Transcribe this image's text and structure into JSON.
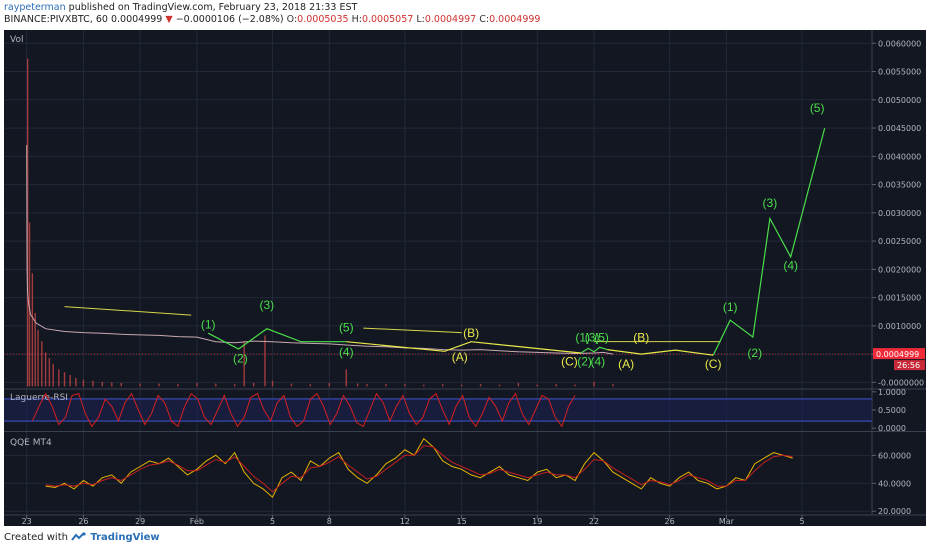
{
  "header": {
    "author": "raypeterman",
    "published": "published on TradingView.com, February 23, 2018 21:33 EST",
    "symbol": "BINANCE:PIVXBTC, 60",
    "last": "0.0004999",
    "arrow": "▼",
    "change": "−0.0000106 (−2.08%)",
    "o_label": "O:",
    "o_value": "0.0005035",
    "h_label": "H:",
    "h_value": "0.0005057",
    "l_label": "L:",
    "l_value": "0.0004997",
    "c_label": "C:",
    "c_value": "0.0004999"
  },
  "footer": {
    "created_with": "Created with",
    "brand": "TradingView"
  },
  "colors": {
    "bg": "#131722",
    "grid": "#22293a",
    "axis_text": "#b2b5be",
    "price": "#c9a9b0",
    "wave_green": "#4ade4a",
    "wave_yellow": "#e9e94a",
    "trend_yellow": "#d7d74a",
    "rsi": "#d62020",
    "qqe_fast": "#e5b400",
    "qqe_slow": "#c42020",
    "volume": "#b44040",
    "price_tag": "#ef2b3a",
    "timer_tag": "#c92a3a",
    "rsi_band": "#3d52c4"
  },
  "chart_data": [
    {
      "type": "line",
      "panel": "price",
      "title": "",
      "indicator_label": "Vol",
      "y_ticks": [
        "0.0060000",
        "0.0055000",
        "0.0050000",
        "0.0045000",
        "0.0040000",
        "0.0035000",
        "0.0030000",
        "0.0025000",
        "0.0020000",
        "0.0015000",
        "0.0010000",
        "0.0005000",
        "-0.0000000"
      ],
      "ylim": [
        -0.0001,
        0.0062
      ],
      "x_ticks": [
        "23",
        "26",
        "29",
        "Feb",
        "5",
        "8",
        "12",
        "15",
        "19",
        "22",
        "26",
        "Mar",
        "5"
      ],
      "x_tick_days": [
        0,
        3,
        6,
        9,
        13,
        16,
        20,
        23,
        27,
        30,
        34,
        37,
        41
      ],
      "current_price": "0.0004999",
      "countdown": "26:56",
      "series": [
        {
          "role": "price",
          "x": [
            0,
            0.02,
            0.05,
            0.1,
            0.2,
            0.5,
            1,
            2,
            3,
            4,
            5,
            6,
            7,
            8,
            9,
            10,
            11,
            12,
            13,
            14,
            15,
            16,
            17,
            18,
            19,
            20,
            21,
            22,
            23,
            24,
            25,
            26,
            27,
            28,
            29,
            30,
            30.5,
            31
          ],
          "y": [
            0.0042,
            0.002,
            0.0016,
            0.0014,
            0.0012,
            0.00105,
            0.00095,
            0.0009,
            0.00088,
            0.00087,
            0.00085,
            0.00084,
            0.00083,
            0.00081,
            0.0008,
            0.00072,
            0.0007,
            0.00073,
            0.00072,
            0.0007,
            0.00069,
            0.00068,
            0.00066,
            0.00064,
            0.00063,
            0.00061,
            0.0006,
            0.00058,
            0.00057,
            0.00058,
            0.00056,
            0.00054,
            0.00053,
            0.00052,
            0.00051,
            0.00052,
            0.00053,
            0.0004999
          ]
        },
        {
          "role": "wave-green",
          "x": [
            9.6,
            11.2,
            12.7,
            14.5,
            16.9
          ],
          "y": [
            0.00087,
            0.00059,
            0.00095,
            0.00072,
            0.00072
          ]
        },
        {
          "role": "wave-yellow",
          "x": [
            16.9,
            22.1,
            23.5,
            29.3
          ],
          "y": [
            0.00072,
            0.00055,
            0.00072,
            0.00052
          ]
        },
        {
          "role": "wave-green-small",
          "x": [
            29.3,
            29.7,
            30.0,
            30.3,
            30.7
          ],
          "y": [
            0.00052,
            0.0006,
            0.00054,
            0.00062,
            0.00058
          ]
        },
        {
          "role": "wave-yellow-projection",
          "x": [
            30.7,
            32.5,
            34.3,
            36.3
          ],
          "y": [
            0.00058,
            0.0005,
            0.00057,
            0.00048
          ]
        },
        {
          "role": "wave-green-projection",
          "x": [
            36.3,
            37.2,
            38.4,
            39.3,
            40.4,
            42.2
          ],
          "y": [
            0.00048,
            0.0011,
            0.0008,
            0.0029,
            0.00222,
            0.0045
          ]
        }
      ],
      "trend_lines": [
        {
          "x": [
            2.0,
            8.7
          ],
          "y": [
            0.00134,
            0.00119
          ]
        },
        {
          "x": [
            17.8,
            23.0
          ],
          "y": [
            0.00096,
            0.00088
          ]
        },
        {
          "x": [
            30.0,
            36.7
          ],
          "y": [
            0.00072,
            0.00072
          ]
        }
      ],
      "wave_labels": [
        {
          "text": "(1)",
          "x": 9.6,
          "y": 0.00095,
          "color": "green"
        },
        {
          "text": "(2)",
          "x": 11.3,
          "y": 0.00035,
          "color": "green"
        },
        {
          "text": "(3)",
          "x": 12.7,
          "y": 0.0013,
          "color": "green"
        },
        {
          "text": "(5)",
          "x": 16.9,
          "y": 0.0009,
          "color": "green"
        },
        {
          "text": "(4)",
          "x": 16.9,
          "y": 0.00047,
          "color": "green"
        },
        {
          "text": "(B)",
          "x": 23.5,
          "y": 0.0008,
          "color": "yellow"
        },
        {
          "text": "(A)",
          "x": 22.9,
          "y": 0.00038,
          "color": "yellow"
        },
        {
          "text": "(1)",
          "x": 29.4,
          "y": 0.00072,
          "color": "green"
        },
        {
          "text": "(3)",
          "x": 29.9,
          "y": 0.00072,
          "color": "green"
        },
        {
          "text": "(5)",
          "x": 30.4,
          "y": 0.00072,
          "color": "green"
        },
        {
          "text": "(C)",
          "x": 28.7,
          "y": 0.0003,
          "color": "yellow"
        },
        {
          "text": "(2)",
          "x": 29.5,
          "y": 0.0003,
          "color": "green"
        },
        {
          "text": "(4)",
          "x": 30.2,
          "y": 0.0003,
          "color": "green"
        },
        {
          "text": "(B)",
          "x": 32.5,
          "y": 0.00072,
          "color": "yellow"
        },
        {
          "text": "(A)",
          "x": 31.7,
          "y": 0.00025,
          "color": "yellow"
        },
        {
          "text": "(C)",
          "x": 36.3,
          "y": 0.00025,
          "color": "yellow"
        },
        {
          "text": "(1)",
          "x": 37.2,
          "y": 0.00126,
          "color": "green"
        },
        {
          "text": "(2)",
          "x": 38.5,
          "y": 0.00045,
          "color": "green"
        },
        {
          "text": "(3)",
          "x": 39.3,
          "y": 0.0031,
          "color": "green"
        },
        {
          "text": "(4)",
          "x": 40.4,
          "y": 0.002,
          "color": "green"
        },
        {
          "text": "(5)",
          "x": 41.8,
          "y": 0.00478,
          "color": "green"
        }
      ],
      "volume": {
        "x": [
          0.05,
          0.15,
          0.3,
          0.45,
          0.6,
          0.8,
          1.0,
          1.2,
          1.4,
          1.7,
          2.0,
          2.3,
          2.6,
          3.0,
          3.5,
          4,
          4.5,
          5,
          6,
          7,
          8,
          9,
          10,
          11,
          11.5,
          12,
          12.6,
          13,
          14,
          15,
          16,
          16.9,
          17.5,
          18,
          19,
          20,
          21,
          22,
          23,
          24,
          25,
          26,
          27,
          28,
          29,
          30,
          31
        ],
        "values": [
          0.0058,
          0.0029,
          0.002,
          0.0013,
          0.001,
          0.0008,
          0.0006,
          0.0005,
          0.0004,
          0.0003,
          0.00025,
          0.0002,
          0.00015,
          0.00012,
          0.0001,
          8e-05,
          7e-05,
          6e-05,
          5e-05,
          5e-05,
          4e-05,
          6e-05,
          5e-05,
          4e-05,
          0.0008,
          6e-05,
          0.0009,
          0.0001,
          5e-05,
          4e-05,
          6e-05,
          0.0003,
          5e-05,
          4e-05,
          4e-05,
          4e-05,
          3e-05,
          4e-05,
          3e-05,
          4e-05,
          3e-05,
          6e-05,
          3e-05,
          4e-05,
          3e-05,
          8e-05,
          4e-05
        ]
      }
    },
    {
      "type": "line",
      "panel": "laguerre",
      "title": "Laguerre-RSI",
      "y_ticks": [
        "1.0000",
        "0.5000",
        "0.0000"
      ],
      "ylim": [
        -0.05,
        1.05
      ],
      "bands": [
        0.8,
        0.2
      ],
      "series": [
        {
          "name": "",
          "x_start": 0.3,
          "x_step": 0.35,
          "values": [
            0.2,
            0.6,
            0.95,
            0.6,
            0.1,
            0.3,
            0.9,
            0.95,
            0.4,
            0.05,
            0.3,
            0.8,
            0.6,
            0.2,
            0.7,
            0.95,
            0.5,
            0.1,
            0.4,
            0.9,
            0.7,
            0.2,
            0.05,
            0.6,
            0.95,
            0.8,
            0.3,
            0.1,
            0.5,
            0.9,
            0.4,
            0.05,
            0.3,
            0.85,
            0.95,
            0.5,
            0.2,
            0.7,
            0.9,
            0.3,
            0.05,
            0.2,
            0.8,
            0.95,
            0.6,
            0.1,
            0.4,
            0.9,
            0.6,
            0.15,
            0.05,
            0.5,
            0.95,
            0.7,
            0.2,
            0.6,
            0.9,
            0.4,
            0.1,
            0.3,
            0.8,
            0.95,
            0.5,
            0.1,
            0.6,
            0.9,
            0.3,
            0.05,
            0.4,
            0.85,
            0.6,
            0.2,
            0.7,
            0.95,
            0.4,
            0.1,
            0.5,
            0.9,
            0.8,
            0.3,
            0.05,
            0.6,
            0.9
          ]
        }
      ]
    },
    {
      "type": "line",
      "panel": "qqe",
      "title": "QQE MT4",
      "y_ticks": [
        "60.0000",
        "40.0000",
        "20.0000"
      ],
      "ylim": [
        18,
        76
      ],
      "series": [
        {
          "name": "",
          "role": "fast",
          "x_start": 1.0,
          "x_step": 0.5,
          "values": [
            38,
            37,
            40,
            36,
            42,
            38,
            44,
            46,
            40,
            48,
            52,
            56,
            54,
            58,
            52,
            46,
            50,
            56,
            60,
            54,
            62,
            48,
            40,
            36,
            30,
            44,
            48,
            42,
            56,
            52,
            58,
            62,
            50,
            44,
            40,
            46,
            54,
            58,
            64,
            60,
            72,
            66,
            56,
            52,
            50,
            46,
            44,
            48,
            52,
            46,
            44,
            42,
            48,
            50,
            44,
            46,
            42,
            54,
            62,
            56,
            48,
            44,
            40,
            36,
            44,
            40,
            38,
            44,
            48,
            42,
            40,
            36,
            38,
            44,
            42,
            54,
            58,
            62,
            60,
            58
          ]
        },
        {
          "name": "",
          "role": "slow",
          "x_start": 1.0,
          "x_step": 0.5,
          "values": [
            39,
            38,
            39,
            38,
            40,
            39,
            42,
            44,
            42,
            46,
            50,
            53,
            54,
            56,
            53,
            49,
            49,
            53,
            57,
            55,
            59,
            52,
            45,
            40,
            34,
            40,
            45,
            44,
            51,
            52,
            55,
            59,
            53,
            48,
            43,
            45,
            50,
            55,
            60,
            60,
            67,
            66,
            60,
            55,
            52,
            49,
            46,
            47,
            50,
            48,
            46,
            44,
            46,
            48,
            46,
            46,
            44,
            50,
            57,
            56,
            51,
            47,
            43,
            39,
            42,
            41,
            39,
            42,
            46,
            44,
            42,
            38,
            38,
            42,
            42,
            49,
            55,
            59,
            60,
            59
          ]
        }
      ]
    }
  ]
}
